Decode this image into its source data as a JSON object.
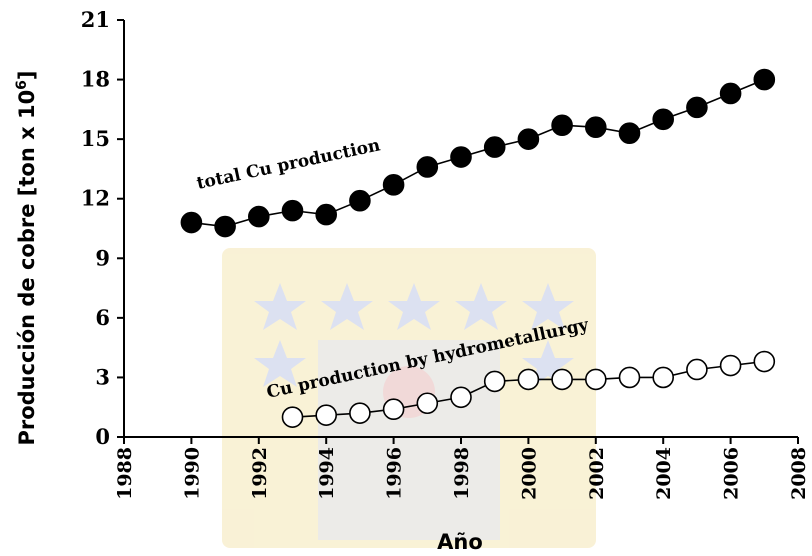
{
  "chart_data": {
    "type": "line",
    "xlabel": "Año",
    "ylabel": "Producción de cobre [ton x 10",
    "ylabel_sup": "6",
    "ylabel_close": "]",
    "xlim": [
      1988,
      2008
    ],
    "ylim": [
      0,
      21
    ],
    "xticks": [
      1988,
      1990,
      1992,
      1994,
      1996,
      1998,
      2000,
      2002,
      2004,
      2006,
      2008
    ],
    "yticks": [
      0,
      3,
      6,
      9,
      12,
      15,
      18,
      21
    ],
    "grid": false,
    "series": [
      {
        "name": "total Cu production",
        "marker": "filled-circle",
        "color": "#000000",
        "x": [
          1990,
          1991,
          1992,
          1993,
          1994,
          1995,
          1996,
          1997,
          1998,
          1999,
          2000,
          2001,
          2002,
          2003,
          2004,
          2005,
          2006,
          2007
        ],
        "y": [
          10.8,
          10.6,
          11.1,
          11.4,
          11.2,
          11.9,
          12.7,
          13.6,
          14.1,
          14.6,
          15.0,
          15.7,
          15.6,
          15.3,
          16.0,
          16.6,
          17.3,
          18.0
        ]
      },
      {
        "name": "Cu production by hydrometallurgy",
        "marker": "open-circle",
        "color": "#000000",
        "x": [
          1993,
          1994,
          1995,
          1996,
          1997,
          1998,
          1999,
          2000,
          2001,
          2002,
          2003,
          2004,
          2005,
          2006,
          2007
        ],
        "y": [
          1.0,
          1.1,
          1.2,
          1.4,
          1.7,
          2.0,
          2.8,
          2.9,
          2.9,
          2.9,
          3.0,
          3.0,
          3.4,
          3.6,
          3.8
        ]
      }
    ]
  }
}
